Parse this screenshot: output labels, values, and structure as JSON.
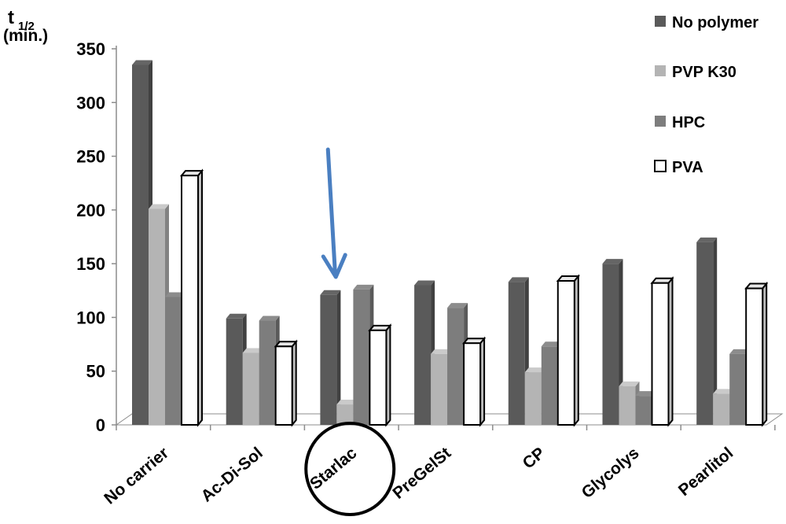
{
  "chart_data": {
    "type": "bar",
    "style": "3d-clustered-columns",
    "ylabel_main": "t",
    "ylabel_sub": "1/2",
    "ylabel_unit": "(min.)",
    "ylim": [
      0,
      350
    ],
    "yticks": [
      0,
      50,
      100,
      150,
      200,
      250,
      300,
      350
    ],
    "grid": false,
    "legend_position": "top-right",
    "categories": [
      "No carrier",
      "Ac-Di-Sol",
      "Starlac",
      "PreGelSt",
      "CP",
      "Glycolys",
      "Pearlitol"
    ],
    "series": [
      {
        "name": "No polymer",
        "color": "#5a5a5a",
        "values": [
          335,
          99,
          121,
          130,
          133,
          150,
          170
        ]
      },
      {
        "name": "PVP K30",
        "color": "#b4b4b4",
        "values": [
          201,
          67,
          19,
          66,
          49,
          36,
          29
        ]
      },
      {
        "name": "HPC",
        "color": "#7d7d7d",
        "values": [
          119,
          97,
          126,
          109,
          73,
          27,
          66
        ]
      },
      {
        "name": "PVA",
        "color": "#ffffff",
        "values": [
          232,
          73,
          88,
          76,
          134,
          132,
          127
        ]
      }
    ],
    "annotations": {
      "highlighted_category": "Starlac",
      "circle_color": "#000000",
      "arrow_color": "#4a7fc1",
      "arrow_target_category": "Starlac"
    }
  }
}
